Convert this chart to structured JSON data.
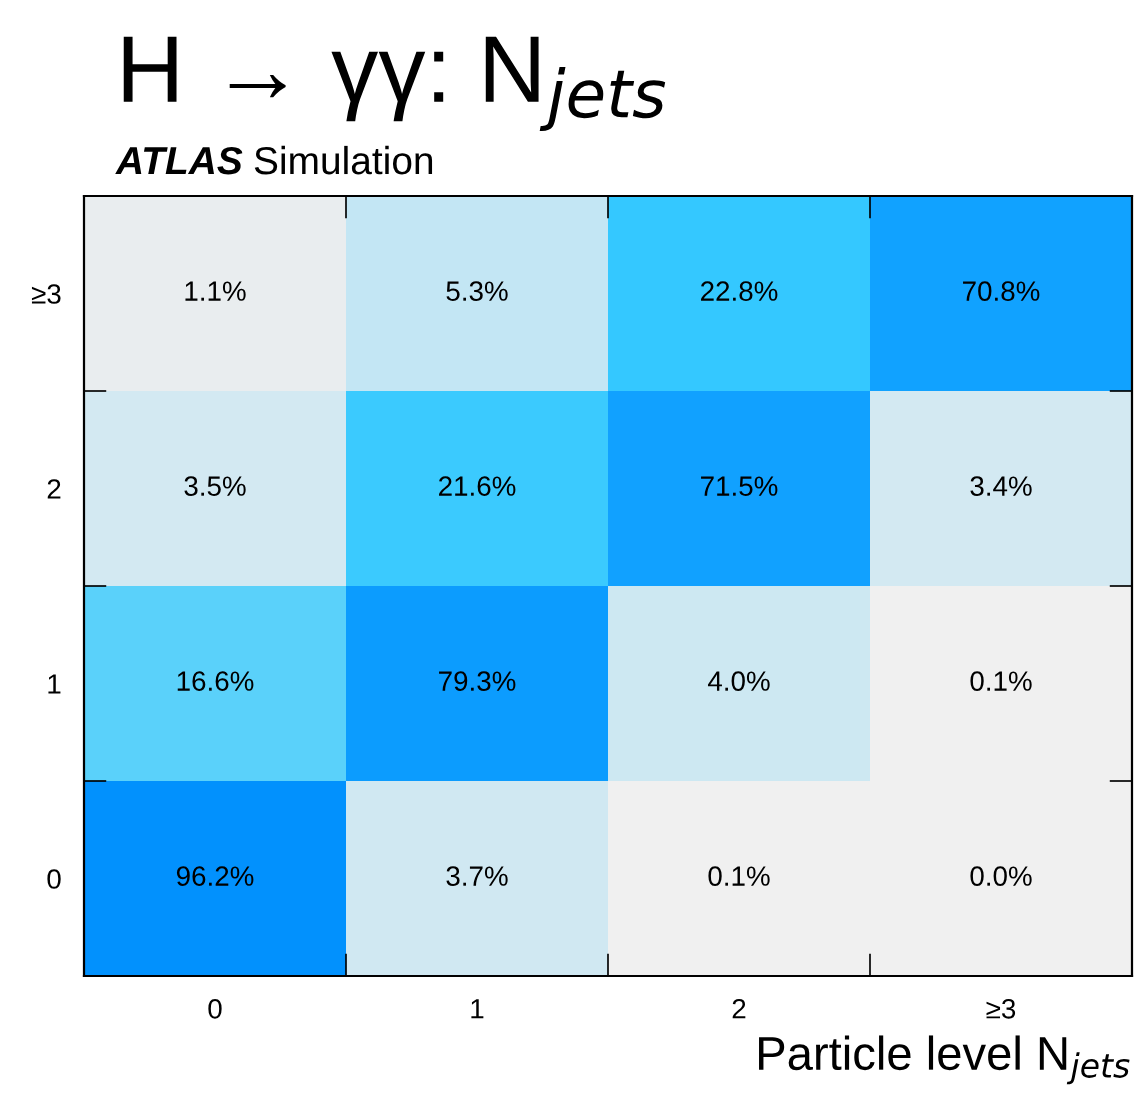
{
  "chart_data": {
    "type": "heatmap",
    "title": "H → γγ: N$_{jets}$",
    "xlabel": "Particle level N$_{jets}$",
    "annotations": [
      "ATLAS",
      "Simulation"
    ],
    "categories": [
      "0",
      "1",
      "2",
      "≥3"
    ],
    "y_categories": [
      "≥3",
      "2",
      "1",
      "0"
    ],
    "cells": [
      [
        1.1,
        5.3,
        22.8,
        70.8
      ],
      [
        3.5,
        21.6,
        71.5,
        3.4
      ],
      [
        16.6,
        79.3,
        4.0,
        0.1
      ],
      [
        96.2,
        3.7,
        0.1,
        0.0
      ]
    ],
    "cell_labels": [
      [
        "1.1%",
        "5.3%",
        "22.8%",
        "70.8%"
      ],
      [
        "3.5%",
        "21.6%",
        "71.5%",
        "3.4%"
      ],
      [
        "16.6%",
        "79.3%",
        "4.0%",
        "0.1%"
      ],
      [
        "96.2%",
        "3.7%",
        "0.1%",
        "0.0%"
      ]
    ]
  }
}
